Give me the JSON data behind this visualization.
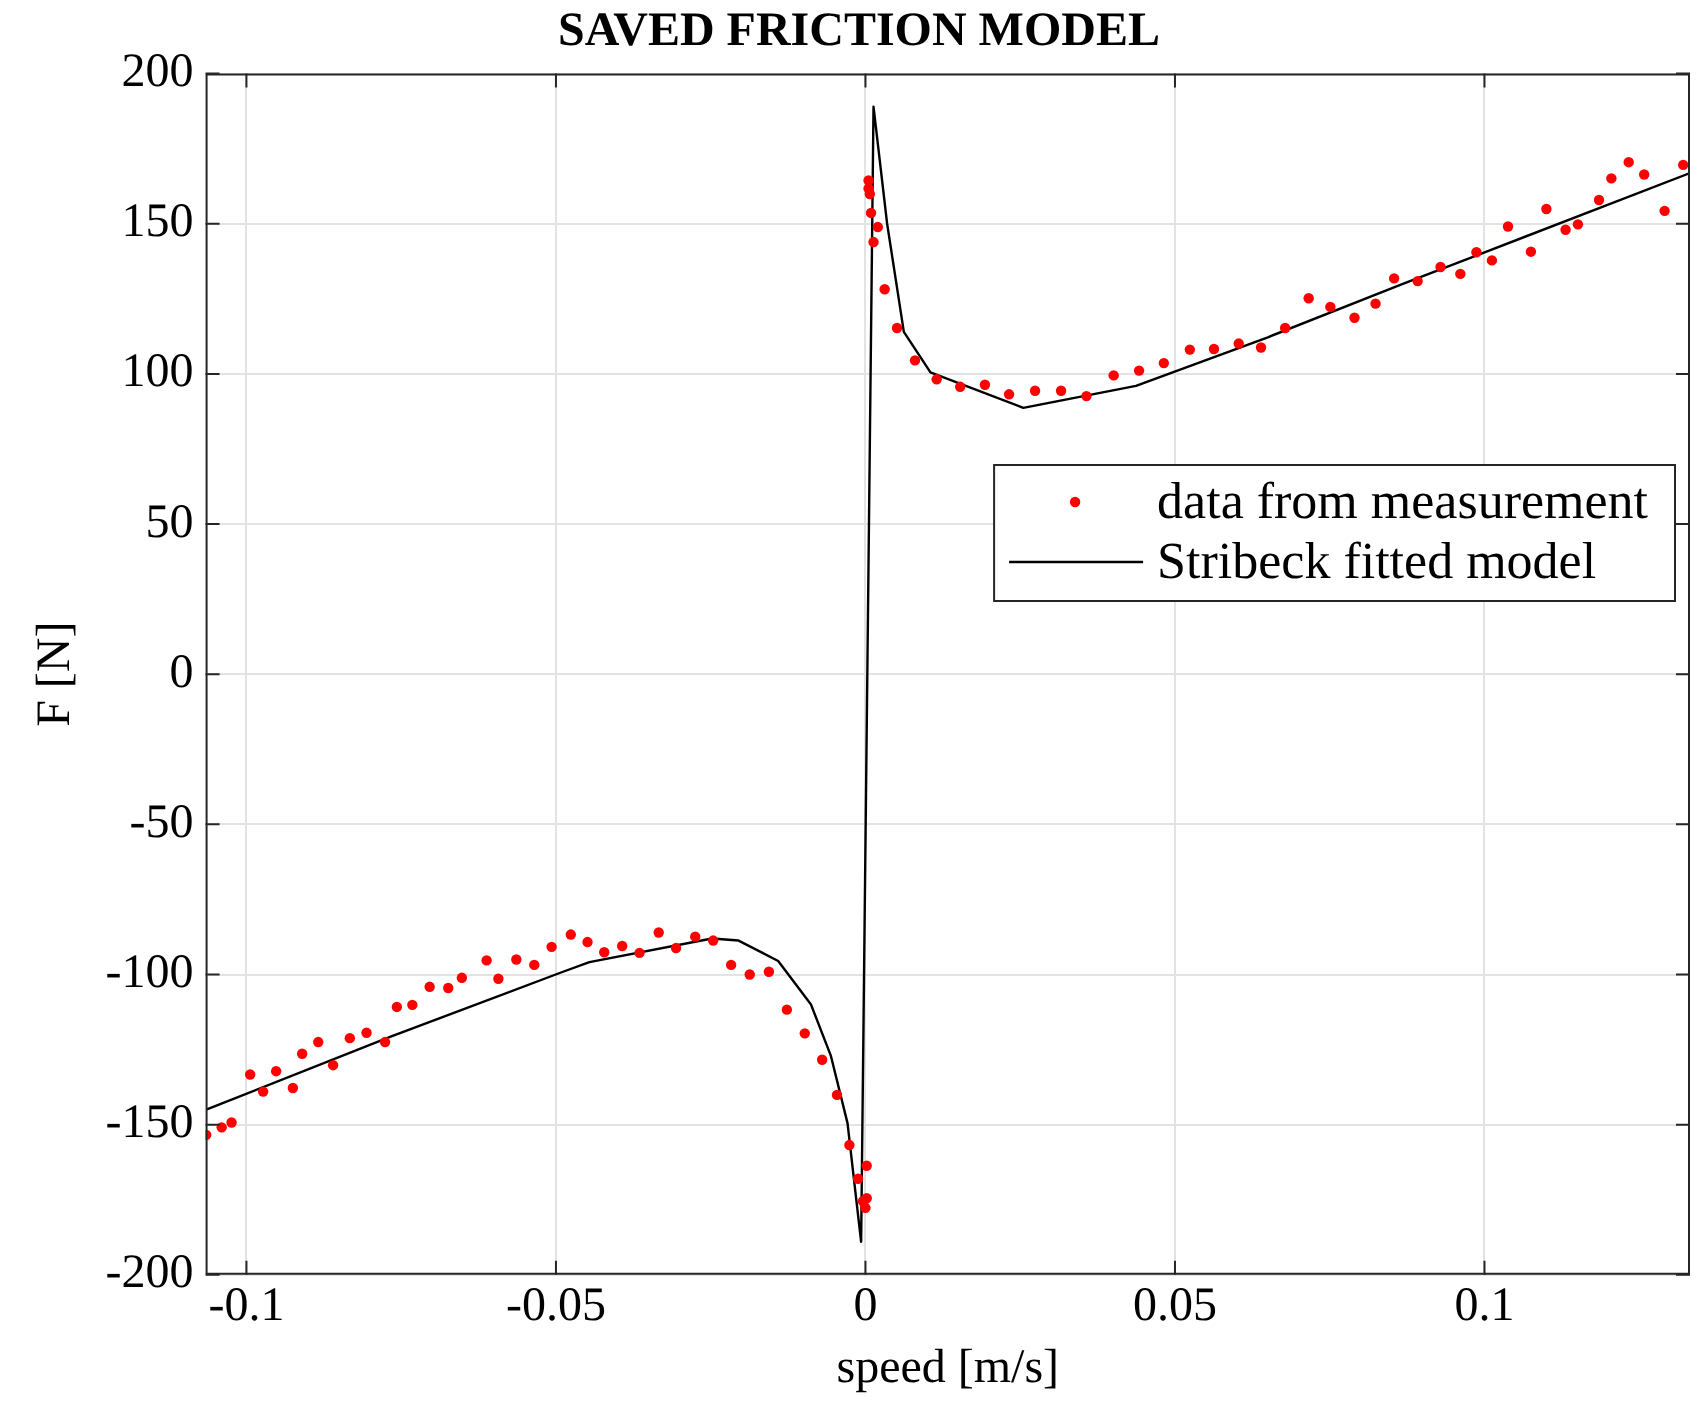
{
  "chart_data": {
    "type": "scatter",
    "title": "SAVED FRICTION MODEL",
    "xlabel": "speed [m/s]",
    "ylabel": "F [N]",
    "xlim": [
      -0.1066,
      0.1332
    ],
    "ylim": [
      -200,
      200
    ],
    "xticks": [
      -0.1,
      -0.05,
      0,
      0.05,
      0.1
    ],
    "yticks": [
      -200,
      -150,
      -100,
      -50,
      0,
      50,
      100,
      150,
      200
    ],
    "grid": true,
    "legend": "right",
    "marker": "circle",
    "series": [
      {
        "name": "data from measurement",
        "color": "#ff0000",
        "x": [
          -0.1065,
          -0.104,
          -0.1024,
          -0.0994,
          -0.0973,
          -0.0952,
          -0.0925,
          -0.091,
          -0.0884,
          -0.086,
          -0.0833,
          -0.0806,
          -0.0776,
          -0.0757,
          -0.0732,
          -0.0704,
          -0.0674,
          -0.0652,
          -0.0612,
          -0.0593,
          -0.0564,
          -0.0535,
          -0.0507,
          -0.0476,
          -0.0449,
          -0.0422,
          -0.0393,
          -0.0365,
          -0.0334,
          -0.0306,
          -0.0275,
          -0.0246,
          -0.0217,
          -0.0187,
          -0.0156,
          -0.0127,
          -0.0098,
          -0.007,
          -0.0046,
          -0.0026,
          -0.0012,
          -0.0004,
          0,
          0.0002,
          0.0002,
          0.0005,
          0.0005,
          0.0007,
          0.0009,
          0.002,
          0.0013,
          0.0031,
          0.0051,
          0.008,
          0.0115,
          0.0153,
          0.0193,
          0.0232,
          0.0274,
          0.0316,
          0.0357,
          0.0401,
          0.0442,
          0.0482,
          0.0524,
          0.0563,
          0.0603,
          0.0639,
          0.0678,
          0.0716,
          0.0751,
          0.079,
          0.0824,
          0.0854,
          0.0892,
          0.0929,
          0.0961,
          0.0987,
          0.1012,
          0.1038,
          0.1075,
          0.11,
          0.1131,
          0.1151,
          0.1185,
          0.1205,
          0.1233,
          0.1258,
          0.1291,
          0.1321
        ],
        "values": [
          -153.4,
          -150.9,
          -149.3,
          -133.3,
          -139,
          -132.2,
          -137.8,
          -126.4,
          -122.5,
          -130.2,
          -121.2,
          -119.4,
          -122.5,
          -110.8,
          -110.1,
          -104.1,
          -104.5,
          -101.1,
          -95.3,
          -101.4,
          -95,
          -96.8,
          -90.8,
          -86.7,
          -89.2,
          -92.6,
          -90.5,
          -92.8,
          -86,
          -91.2,
          -87.4,
          -88.7,
          -96.8,
          -100,
          -99.1,
          -111.7,
          -119.6,
          -128.4,
          -140.1,
          -156.8,
          -168,
          -175.5,
          -177.7,
          -174.5,
          -163.7,
          164.4,
          161.7,
          159.9,
          153.6,
          148.9,
          143.9,
          128.2,
          115.3,
          104.5,
          98.2,
          95.7,
          96.4,
          93.2,
          94.4,
          94.4,
          92.6,
          99.5,
          101.1,
          103.6,
          108.1,
          108.3,
          110.1,
          108.8,
          115.3,
          125.2,
          122.3,
          118.7,
          123.4,
          131.8,
          130.9,
          135.6,
          133.3,
          140.5,
          137.8,
          149.1,
          140.7,
          154.9,
          148,
          149.8,
          157.9,
          165.1,
          170.5,
          166.4,
          154.3,
          169.6
        ]
      },
      {
        "name": "Stribeck fitted model",
        "type": "line",
        "color": "#000000",
        "marker": "none",
        "line_style": "solid",
        "x": [
          -0.1065,
          -0.0767,
          -0.0494,
          -0.0446,
          -0.0248,
          -0.0205,
          -0.0141,
          -0.0088,
          -0.0056,
          -0.0029,
          -0.0007,
          0.0003,
          0.0013,
          0.0035,
          0.0062,
          0.0105,
          0.0255,
          0.0437,
          0.065,
          0.0865,
          0.1332
        ],
        "values": [
          -145,
          -120.7,
          -99.5,
          -95.9,
          -88,
          -88.7,
          -95.5,
          -110,
          -127,
          -149.5,
          -189,
          0,
          189,
          150,
          114,
          100.5,
          88.7,
          96,
          112.2,
          129.7,
          166.9
        ]
      }
    ]
  }
}
